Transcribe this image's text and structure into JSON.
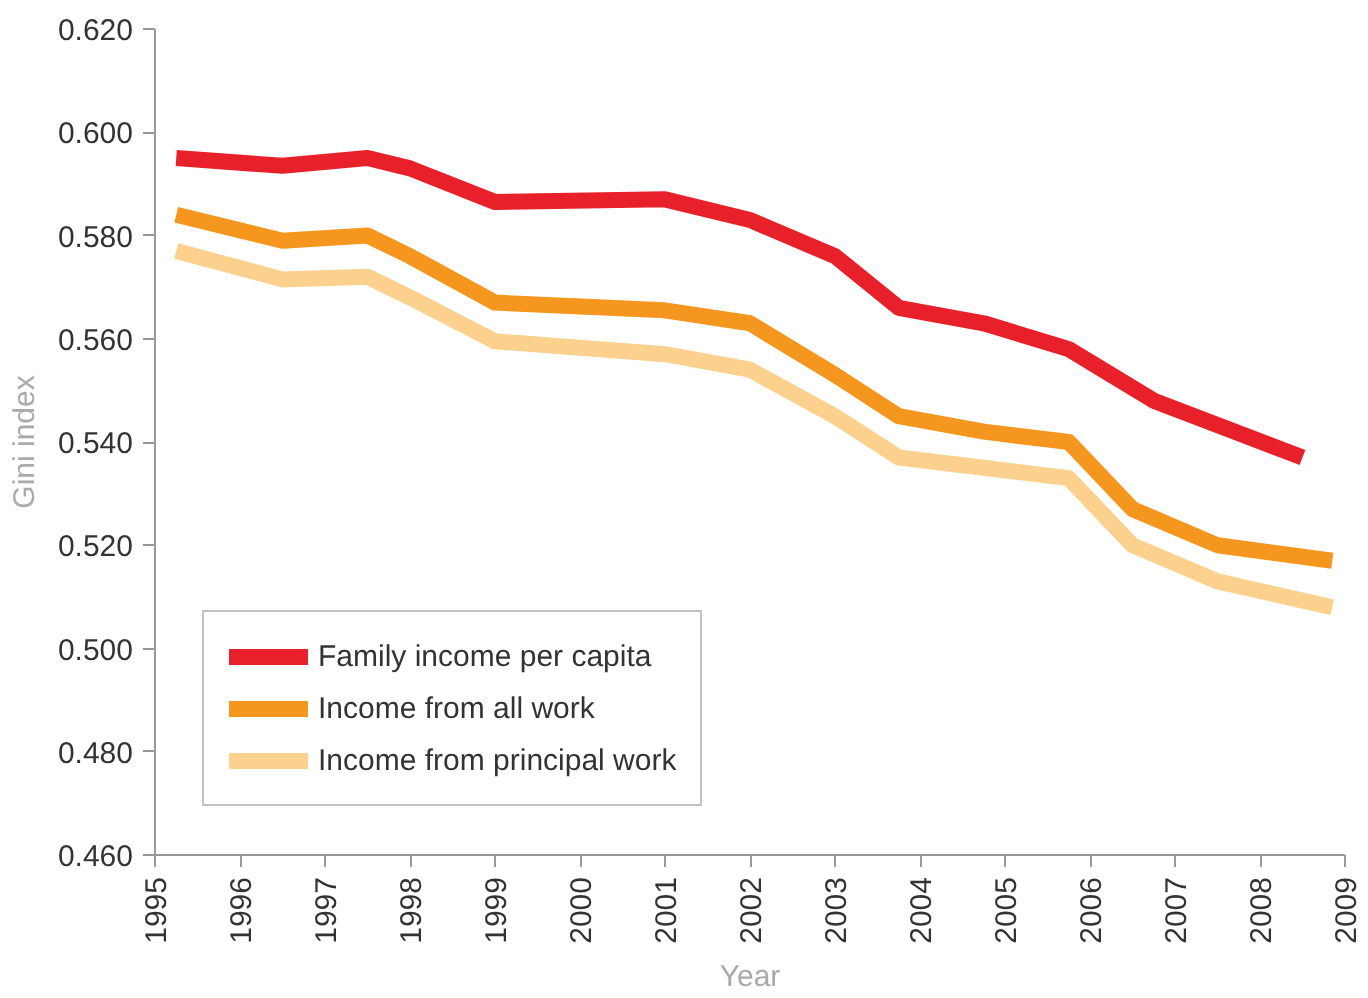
{
  "chart_data": {
    "type": "line",
    "xlabel": "Year",
    "ylabel": "Gini index",
    "xlim": [
      1995,
      2009
    ],
    "xticks": [
      1995,
      1996,
      1997,
      1998,
      1999,
      2000,
      2001,
      2002,
      2003,
      2004,
      2005,
      2006,
      2007,
      2008,
      2009
    ],
    "ylim": [
      0.46,
      0.62
    ],
    "yticks": [
      {
        "value": 0.46,
        "label": "0.460"
      },
      {
        "value": 0.48,
        "label": "0.480"
      },
      {
        "value": 0.5,
        "label": "0.500"
      },
      {
        "value": 0.52,
        "label": "0.520"
      },
      {
        "value": 0.54,
        "label": "0.540"
      },
      {
        "value": 0.56,
        "label": "0.560"
      },
      {
        "value": 0.58,
        "label": "0.580"
      },
      {
        "value": 0.6,
        "label": "0.600"
      },
      {
        "value": 0.62,
        "label": "0.620"
      }
    ],
    "grid": false,
    "legend": "bottom left",
    "marker": "none",
    "line_style": "solid",
    "series": [
      {
        "name": "Family income per capita",
        "color": "#e8202a",
        "x": [
          1995.25,
          1996.5,
          1997.5,
          1998,
          1999,
          2001,
          2002,
          2003,
          2003.75,
          2004.75,
          2005.75,
          2006.75,
          2008.5
        ],
        "values": [
          0.595,
          0.5935,
          0.595,
          0.593,
          0.5865,
          0.587,
          0.583,
          0.576,
          0.566,
          0.563,
          0.558,
          0.548,
          0.537
        ]
      },
      {
        "name": "Income from all work",
        "color": "#f5961e",
        "x": [
          1995.25,
          1996.5,
          1997.5,
          1998,
          1999,
          2001,
          2002,
          2003,
          2003.75,
          2004.75,
          2005.75,
          2006.5,
          2007.5,
          2008.85
        ],
        "values": [
          0.584,
          0.579,
          0.58,
          0.576,
          0.567,
          0.5655,
          0.563,
          0.553,
          0.545,
          0.542,
          0.54,
          0.527,
          0.52,
          0.517
        ]
      },
      {
        "name": "Income from principal work",
        "color": "#fbd18d",
        "x": [
          1995.25,
          1996.5,
          1997.5,
          1998,
          1999,
          2001,
          2002,
          2003,
          2003.75,
          2004.75,
          2005.75,
          2006.5,
          2007.5,
          2008.85
        ],
        "values": [
          0.577,
          0.5715,
          0.572,
          0.568,
          0.5595,
          0.557,
          0.554,
          0.545,
          0.537,
          0.535,
          0.533,
          0.52,
          0.513,
          0.508
        ]
      }
    ]
  }
}
